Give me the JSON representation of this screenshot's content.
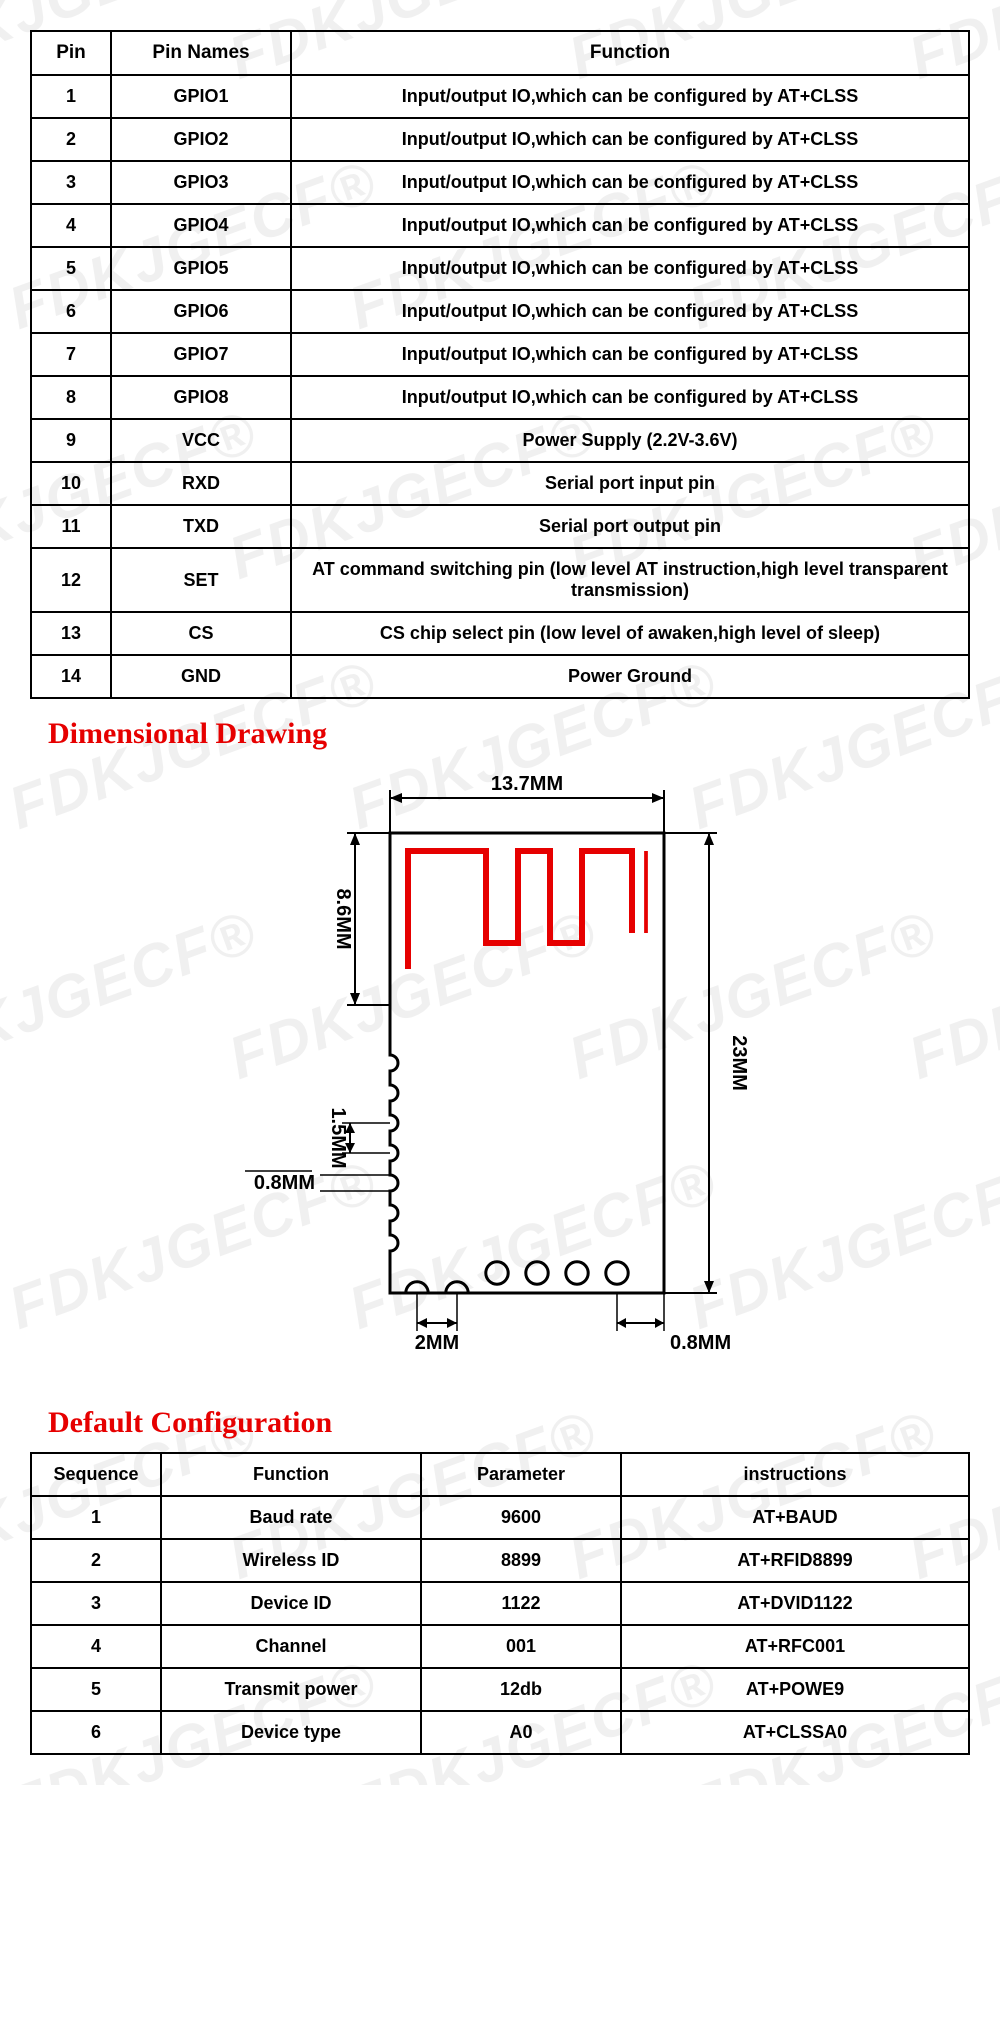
{
  "watermark_text": "FDKJGECF®",
  "pin_table": {
    "headers": [
      "Pin",
      "Pin Names",
      "Function"
    ],
    "rows": [
      [
        "1",
        "GPIO1",
        "Input/output IO,which can be configured by AT+CLSS"
      ],
      [
        "2",
        "GPIO2",
        "Input/output IO,which can be configured by AT+CLSS"
      ],
      [
        "3",
        "GPIO3",
        "Input/output IO,which can be configured by AT+CLSS"
      ],
      [
        "4",
        "GPIO4",
        "Input/output IO,which can be configured by AT+CLSS"
      ],
      [
        "5",
        "GPIO5",
        "Input/output IO,which can be configured by AT+CLSS"
      ],
      [
        "6",
        "GPIO6",
        "Input/output IO,which can be configured by AT+CLSS"
      ],
      [
        "7",
        "GPIO7",
        "Input/output IO,which can be configured by AT+CLSS"
      ],
      [
        "8",
        "GPIO8",
        "Input/output IO,which can be configured by AT+CLSS"
      ],
      [
        "9",
        "VCC",
        "Power Supply (2.2V-3.6V)"
      ],
      [
        "10",
        "RXD",
        "Serial port input pin"
      ],
      [
        "11",
        "TXD",
        "Serial port output pin"
      ],
      [
        "12",
        "SET",
        "AT command switching pin (low level AT instruction,high level transparent transmission)"
      ],
      [
        "13",
        "CS",
        "CS chip select pin (low level of awaken,high level of sleep)"
      ],
      [
        "14",
        "GND",
        "Power Ground"
      ]
    ]
  },
  "section_dimensional": "Dimensional Drawing",
  "section_config": "Default Configuration",
  "drawing": {
    "width_label": "13.7MM",
    "height_label": "23MM",
    "antenna_h_label": "8.6MM",
    "notch_w_label": "0.8MM",
    "notch_pitch_label": "1.5MM",
    "bottom_pitch_label": "2MM",
    "bottom_pad_label": "0.8MM",
    "stroke_black": "#000000",
    "stroke_red": "#e60000",
    "stroke_width_outline": 3,
    "stroke_width_dim": 2,
    "antenna_stroke_width": 6
  },
  "cfg_table": {
    "headers": [
      "Sequence",
      "Function",
      "Parameter",
      "instructions"
    ],
    "rows": [
      [
        "1",
        "Baud rate",
        "9600",
        "AT+BAUD"
      ],
      [
        "2",
        "Wireless ID",
        "8899",
        "AT+RFID8899"
      ],
      [
        "3",
        "Device ID",
        "1122",
        "AT+DVID1122"
      ],
      [
        "4",
        "Channel",
        "001",
        "AT+RFC001"
      ],
      [
        "5",
        "Transmit power",
        "12db",
        "AT+POWE9"
      ],
      [
        "6",
        "Device type",
        "A0",
        "AT+CLSSA0"
      ]
    ]
  }
}
